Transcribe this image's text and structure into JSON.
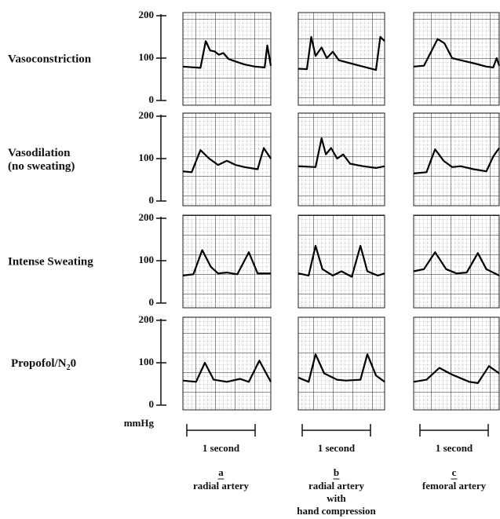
{
  "y_axis": {
    "unit": "mmHg",
    "ticks": [
      200,
      100,
      0
    ]
  },
  "rows": [
    {
      "label": [
        "Vasoconstriction"
      ]
    },
    {
      "label": [
        "Vasodilation",
        "(no sweating)"
      ]
    },
    {
      "label": [
        "Intense Sweating"
      ]
    },
    {
      "label": [
        "Propofol/N",
        "2",
        "0"
      ]
    }
  ],
  "columns": [
    {
      "letter": "a",
      "label": [
        "radial artery"
      ]
    },
    {
      "letter": "b",
      "label": [
        "radial artery",
        "with",
        "hand compression"
      ]
    },
    {
      "letter": "c",
      "label": [
        "femoral artery"
      ]
    }
  ],
  "scale_bar": "1 second"
}
